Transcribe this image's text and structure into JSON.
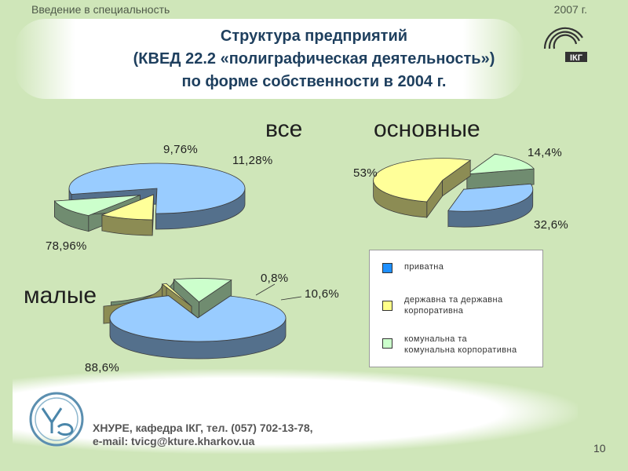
{
  "header": {
    "course": "Введение в специальность",
    "year": "2007 г."
  },
  "title": {
    "line1": "Структура предприятий",
    "line2": "(КВЕД 22.2 «полиграфическая деятельность»)",
    "line3": "по форме собственности в 2004 г."
  },
  "logo": {
    "ikg_text": "ІКГ"
  },
  "colors": {
    "private": "#99ccff",
    "state": "#ffff99",
    "communal": "#ccffcc"
  },
  "chart_data": [
    {
      "type": "pie",
      "title": "все",
      "categories": [
        "приватна",
        "державна та державна корпоративна",
        "комунальна та комунальна корпоративна"
      ],
      "values": [
        78.96,
        9.76,
        11.28
      ],
      "labels": [
        "78,96%",
        "9,76%",
        "11,28%"
      ]
    },
    {
      "type": "pie",
      "title": "основные",
      "categories": [
        "приватна",
        "державна та державна корпоративна",
        "комунальна та комунальна корпоративна"
      ],
      "values": [
        32.6,
        53.0,
        14.4
      ],
      "labels": [
        "32,6%",
        "53%",
        "14,4%"
      ]
    },
    {
      "type": "pie",
      "title": "малые",
      "categories": [
        "приватна",
        "державна та державна корпоративна",
        "комунальна та комунальна корпоративна"
      ],
      "values": [
        88.6,
        0.8,
        10.6
      ],
      "labels": [
        "88,6%",
        "0,8%",
        "10,6%"
      ]
    }
  ],
  "legend": {
    "items": [
      {
        "line1": "приватна",
        "line2": ""
      },
      {
        "line1": "державна та державна",
        "line2": "корпоративна"
      },
      {
        "line1": "комунальна та",
        "line2": "комунальна корпоративна"
      }
    ]
  },
  "footer": {
    "line1": "ХНУРЕ, кафедра ІКГ, тел. (057) 702-13-78,",
    "line2": "e-mail: tvicg@kture.kharkov.ua"
  },
  "page_number": "10"
}
